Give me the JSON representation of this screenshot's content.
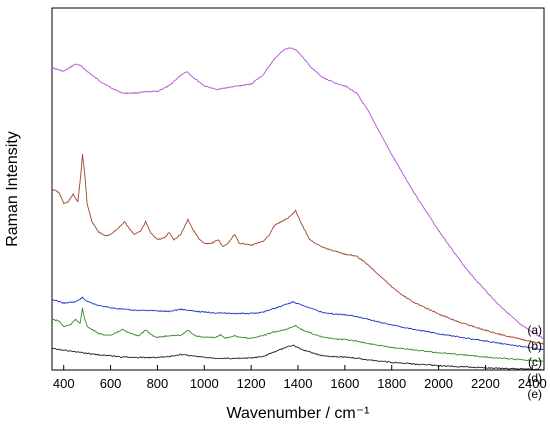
{
  "chart_data": {
    "type": "line",
    "xlabel": "Wavenumber / cm⁻¹",
    "ylabel": "Raman Intensity",
    "xlim": [
      350,
      2450
    ],
    "ylim": [
      0,
      100
    ],
    "x_ticks": [
      400,
      600,
      800,
      1000,
      1200,
      1400,
      1600,
      1800,
      2000,
      2200,
      2400
    ],
    "y_ticks_shown": false,
    "grid": false,
    "series": [
      {
        "name": "(a)",
        "color": "#b44fd6",
        "points": [
          [
            350,
            83.5
          ],
          [
            400,
            82.5
          ],
          [
            450,
            84.5
          ],
          [
            475,
            84
          ],
          [
            500,
            82.5
          ],
          [
            550,
            80
          ],
          [
            600,
            78
          ],
          [
            650,
            76.5
          ],
          [
            700,
            76.5
          ],
          [
            750,
            76.8
          ],
          [
            800,
            77
          ],
          [
            850,
            78.5
          ],
          [
            900,
            81.5
          ],
          [
            925,
            82.5
          ],
          [
            950,
            81
          ],
          [
            1000,
            78.5
          ],
          [
            1050,
            77.5
          ],
          [
            1100,
            78
          ],
          [
            1150,
            78.5
          ],
          [
            1200,
            79
          ],
          [
            1250,
            81.5
          ],
          [
            1300,
            86
          ],
          [
            1340,
            88.5
          ],
          [
            1370,
            89
          ],
          [
            1400,
            88
          ],
          [
            1450,
            84
          ],
          [
            1500,
            81
          ],
          [
            1550,
            79.5
          ],
          [
            1600,
            78.5
          ],
          [
            1650,
            76.5
          ],
          [
            1700,
            71.5
          ],
          [
            1750,
            65.5
          ],
          [
            1800,
            59.5
          ],
          [
            1850,
            54
          ],
          [
            1900,
            48.5
          ],
          [
            1950,
            43.5
          ],
          [
            2000,
            38.5
          ],
          [
            2050,
            34
          ],
          [
            2100,
            29.5
          ],
          [
            2150,
            25.5
          ],
          [
            2200,
            22
          ],
          [
            2250,
            18.5
          ],
          [
            2300,
            15.5
          ],
          [
            2350,
            12.5
          ],
          [
            2400,
            10.5
          ],
          [
            2450,
            8.5
          ]
        ]
      },
      {
        "name": "(b)",
        "color": "#a0452a",
        "points": [
          [
            350,
            50
          ],
          [
            380,
            49
          ],
          [
            400,
            46
          ],
          [
            420,
            46.5
          ],
          [
            440,
            48.5
          ],
          [
            460,
            46.5
          ],
          [
            470,
            52
          ],
          [
            480,
            59.5
          ],
          [
            490,
            54
          ],
          [
            500,
            46
          ],
          [
            520,
            41
          ],
          [
            550,
            38
          ],
          [
            580,
            37
          ],
          [
            600,
            37.5
          ],
          [
            630,
            39
          ],
          [
            660,
            41
          ],
          [
            680,
            39
          ],
          [
            700,
            37.5
          ],
          [
            730,
            38.5
          ],
          [
            750,
            41
          ],
          [
            770,
            38
          ],
          [
            800,
            36
          ],
          [
            830,
            36.5
          ],
          [
            850,
            38
          ],
          [
            870,
            36
          ],
          [
            900,
            37.5
          ],
          [
            930,
            41.5
          ],
          [
            950,
            39
          ],
          [
            980,
            36
          ],
          [
            1000,
            35
          ],
          [
            1030,
            35
          ],
          [
            1060,
            36
          ],
          [
            1080,
            34
          ],
          [
            1100,
            35
          ],
          [
            1130,
            37.5
          ],
          [
            1150,
            35
          ],
          [
            1200,
            34.5
          ],
          [
            1250,
            35.5
          ],
          [
            1280,
            37.5
          ],
          [
            1300,
            40
          ],
          [
            1330,
            41
          ],
          [
            1360,
            42
          ],
          [
            1390,
            44
          ],
          [
            1410,
            41
          ],
          [
            1450,
            36
          ],
          [
            1500,
            34
          ],
          [
            1550,
            33
          ],
          [
            1600,
            32
          ],
          [
            1650,
            31.5
          ],
          [
            1700,
            29
          ],
          [
            1750,
            26
          ],
          [
            1800,
            23
          ],
          [
            1850,
            20.5
          ],
          [
            1900,
            18.5
          ],
          [
            1950,
            17
          ],
          [
            2000,
            15.5
          ],
          [
            2050,
            14.2
          ],
          [
            2100,
            13
          ],
          [
            2150,
            12
          ],
          [
            2200,
            11
          ],
          [
            2250,
            10
          ],
          [
            2300,
            9.3
          ],
          [
            2350,
            8.5
          ],
          [
            2400,
            7.8
          ],
          [
            2450,
            7.2
          ]
        ]
      },
      {
        "name": "(c)",
        "color": "#2233cc",
        "points": [
          [
            350,
            19.5
          ],
          [
            400,
            18.5
          ],
          [
            450,
            18.8
          ],
          [
            480,
            20
          ],
          [
            500,
            19
          ],
          [
            550,
            17.8
          ],
          [
            600,
            17.2
          ],
          [
            650,
            16.8
          ],
          [
            700,
            16.5
          ],
          [
            750,
            16.5
          ],
          [
            800,
            16.3
          ],
          [
            850,
            16.2
          ],
          [
            900,
            16.8
          ],
          [
            950,
            16.3
          ],
          [
            1000,
            16
          ],
          [
            1050,
            15.8
          ],
          [
            1100,
            15.7
          ],
          [
            1150,
            15.6
          ],
          [
            1200,
            15.6
          ],
          [
            1250,
            16
          ],
          [
            1300,
            17
          ],
          [
            1350,
            18.2
          ],
          [
            1380,
            18.8
          ],
          [
            1420,
            17.8
          ],
          [
            1500,
            16
          ],
          [
            1550,
            15.5
          ],
          [
            1600,
            15.3
          ],
          [
            1650,
            14.8
          ],
          [
            1700,
            14
          ],
          [
            1750,
            13.2
          ],
          [
            1800,
            12.5
          ],
          [
            1850,
            11.8
          ],
          [
            1900,
            11.2
          ],
          [
            2000,
            10
          ],
          [
            2100,
            9
          ],
          [
            2200,
            8
          ],
          [
            2300,
            7
          ],
          [
            2400,
            6.1
          ],
          [
            2450,
            5.6
          ]
        ]
      },
      {
        "name": "(d)",
        "color": "#3a8a2e",
        "points": [
          [
            350,
            14
          ],
          [
            380,
            13.5
          ],
          [
            400,
            12
          ],
          [
            430,
            12.5
          ],
          [
            450,
            14
          ],
          [
            470,
            13
          ],
          [
            480,
            17
          ],
          [
            490,
            14
          ],
          [
            500,
            12
          ],
          [
            550,
            10
          ],
          [
            600,
            9.5
          ],
          [
            650,
            11.2
          ],
          [
            680,
            10.2
          ],
          [
            720,
            9.5
          ],
          [
            750,
            11
          ],
          [
            780,
            9.5
          ],
          [
            800,
            9
          ],
          [
            850,
            9.5
          ],
          [
            900,
            9.6
          ],
          [
            930,
            11
          ],
          [
            960,
            9.5
          ],
          [
            1000,
            9
          ],
          [
            1050,
            9
          ],
          [
            1070,
            9.8
          ],
          [
            1090,
            8.8
          ],
          [
            1130,
            9.5
          ],
          [
            1150,
            9
          ],
          [
            1200,
            8.8
          ],
          [
            1250,
            9.5
          ],
          [
            1300,
            10.5
          ],
          [
            1350,
            11.2
          ],
          [
            1390,
            12.3
          ],
          [
            1420,
            11
          ],
          [
            1500,
            9.2
          ],
          [
            1550,
            8.6
          ],
          [
            1600,
            8.4
          ],
          [
            1650,
            8
          ],
          [
            1700,
            7.3
          ],
          [
            1800,
            6.3
          ],
          [
            1900,
            5.5
          ],
          [
            2000,
            4.8
          ],
          [
            2100,
            4.2
          ],
          [
            2200,
            3.6
          ],
          [
            2300,
            3.1
          ],
          [
            2400,
            2.6
          ],
          [
            2450,
            2.4
          ]
        ]
      },
      {
        "name": "(e)",
        "color": "#222222",
        "points": [
          [
            350,
            6
          ],
          [
            400,
            5.5
          ],
          [
            450,
            5
          ],
          [
            500,
            4.6
          ],
          [
            550,
            4.2
          ],
          [
            600,
            3.9
          ],
          [
            650,
            3.6
          ],
          [
            700,
            3.5
          ],
          [
            750,
            3.4
          ],
          [
            800,
            3.5
          ],
          [
            850,
            3.7
          ],
          [
            900,
            4.3
          ],
          [
            950,
            3.9
          ],
          [
            1000,
            3.5
          ],
          [
            1050,
            3.3
          ],
          [
            1100,
            3.2
          ],
          [
            1150,
            3.2
          ],
          [
            1200,
            3.3
          ],
          [
            1250,
            3.7
          ],
          [
            1300,
            5
          ],
          [
            1350,
            6.3
          ],
          [
            1380,
            6.8
          ],
          [
            1420,
            5.6
          ],
          [
            1500,
            4
          ],
          [
            1550,
            3.7
          ],
          [
            1600,
            3.6
          ],
          [
            1650,
            3.3
          ],
          [
            1700,
            2.8
          ],
          [
            1800,
            2.1
          ],
          [
            1900,
            1.6
          ],
          [
            2000,
            1.2
          ],
          [
            2100,
            0.9
          ],
          [
            2200,
            0.6
          ],
          [
            2300,
            0.4
          ],
          [
            2400,
            0.2
          ],
          [
            2450,
            0.1
          ]
        ]
      }
    ]
  }
}
